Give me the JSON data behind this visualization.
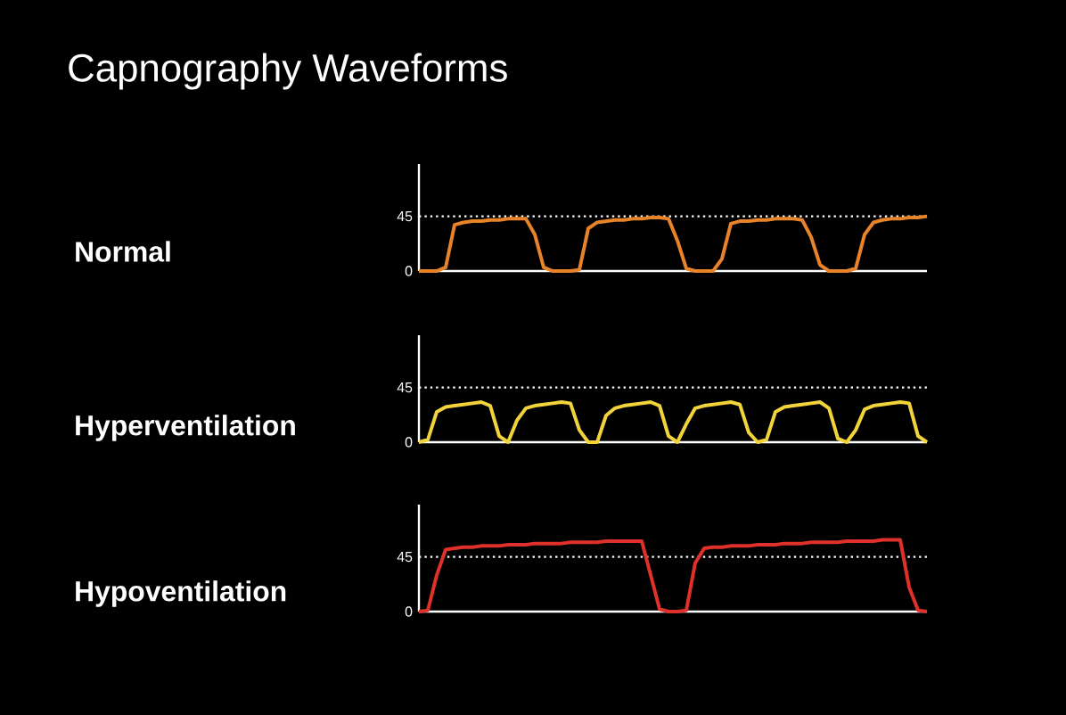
{
  "chart_data": [
    {
      "type": "line",
      "title": "Capnography Waveforms",
      "ylabel": "Normal",
      "tick_labels": "y",
      "categories": [
        null,
        null,
        null,
        null,
        null,
        null,
        null,
        null,
        null,
        null,
        null,
        null,
        null,
        null,
        null,
        null,
        null,
        null,
        null,
        null,
        null,
        null,
        null,
        null,
        null,
        null,
        null,
        null,
        null,
        null,
        null,
        null,
        null,
        null,
        null,
        null,
        null,
        null,
        null,
        null,
        null,
        null,
        null,
        null,
        null,
        null,
        null,
        null,
        null,
        null,
        null,
        null,
        null,
        null,
        null,
        null,
        null,
        null
      ],
      "series": [
        {
          "color": "#e8832a",
          "values": [
            0,
            0,
            0,
            3,
            38,
            40,
            41,
            41,
            42,
            42,
            43,
            43,
            43,
            30,
            3,
            0,
            0,
            0,
            1,
            35,
            40,
            41,
            42,
            42,
            43,
            43,
            44,
            44,
            43,
            25,
            2,
            0,
            0,
            0,
            10,
            39,
            41,
            41,
            42,
            42,
            43,
            43,
            43,
            42,
            28,
            5,
            0,
            0,
            0,
            2,
            30,
            40,
            42,
            43,
            43,
            44,
            44,
            45
          ]
        }
      ],
      "ylim": [
        0,
        88
      ],
      "yticks": [
        0,
        45
      ],
      "ref_lines": [
        {
          "axis": "y",
          "value": 45,
          "color": "#ffffff",
          "line_style": "dotted"
        }
      ]
    },
    {
      "type": "line",
      "ylabel": "Hyperventilation",
      "tick_labels": "y",
      "categories": [
        null,
        null,
        null,
        null,
        null,
        null,
        null,
        null,
        null,
        null,
        null,
        null,
        null,
        null,
        null,
        null,
        null,
        null,
        null,
        null,
        null,
        null,
        null,
        null,
        null,
        null,
        null,
        null,
        null,
        null,
        null,
        null,
        null,
        null,
        null,
        null,
        null,
        null,
        null,
        null,
        null,
        null,
        null,
        null,
        null,
        null,
        null,
        null,
        null,
        null,
        null,
        null,
        null,
        null,
        null,
        null,
        null,
        null
      ],
      "series": [
        {
          "color": "#f2d33a",
          "values": [
            0,
            2,
            25,
            29,
            30,
            31,
            32,
            33,
            30,
            5,
            0,
            18,
            28,
            30,
            31,
            32,
            33,
            32,
            10,
            0,
            0,
            22,
            28,
            30,
            31,
            32,
            33,
            30,
            5,
            0,
            15,
            28,
            30,
            31,
            32,
            33,
            31,
            8,
            0,
            2,
            25,
            29,
            30,
            31,
            32,
            33,
            28,
            3,
            0,
            10,
            27,
            30,
            31,
            32,
            33,
            32,
            5,
            0
          ]
        }
      ],
      "ylim": [
        0,
        88
      ],
      "yticks": [
        0,
        45
      ],
      "ref_lines": [
        {
          "axis": "y",
          "value": 45,
          "color": "#ffffff",
          "line_style": "dotted"
        }
      ]
    },
    {
      "type": "line",
      "ylabel": "Hypoventilation",
      "tick_labels": "y",
      "categories": [
        null,
        null,
        null,
        null,
        null,
        null,
        null,
        null,
        null,
        null,
        null,
        null,
        null,
        null,
        null,
        null,
        null,
        null,
        null,
        null,
        null,
        null,
        null,
        null,
        null,
        null,
        null,
        null,
        null,
        null,
        null,
        null,
        null,
        null,
        null,
        null,
        null,
        null,
        null,
        null,
        null,
        null,
        null,
        null,
        null,
        null,
        null,
        null,
        null,
        null,
        null,
        null,
        null,
        null,
        null,
        null,
        null,
        null
      ],
      "series": [
        {
          "color": "#e0302a",
          "values": [
            0,
            1,
            30,
            51,
            52,
            53,
            53,
            54,
            54,
            54,
            55,
            55,
            55,
            56,
            56,
            56,
            56,
            57,
            57,
            57,
            57,
            58,
            58,
            58,
            58,
            58,
            30,
            2,
            0,
            0,
            1,
            40,
            52,
            53,
            53,
            54,
            54,
            54,
            55,
            55,
            55,
            56,
            56,
            56,
            57,
            57,
            57,
            57,
            58,
            58,
            58,
            58,
            59,
            59,
            59,
            20,
            1,
            0
          ]
        }
      ],
      "ylim": [
        0,
        88
      ],
      "yticks": [
        0,
        45
      ],
      "ref_lines": [
        {
          "axis": "y",
          "value": 45,
          "color": "#ffffff",
          "line_style": "dotted"
        }
      ]
    }
  ]
}
